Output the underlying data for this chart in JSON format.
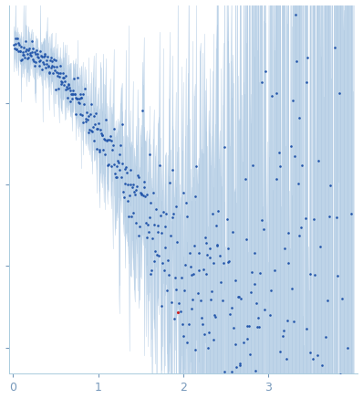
{
  "title": "",
  "xlabel": "",
  "ylabel": "",
  "xlim": [
    -0.05,
    4.05
  ],
  "ylim": [
    -0.08,
    1.05
  ],
  "x_ticks": [
    0,
    1,
    2,
    3
  ],
  "background_color": "#ffffff",
  "dot_color": "#2255aa",
  "outlier_color": "#cc2222",
  "error_fill_color": "#b8d0e8",
  "error_line_color": "#a8c4e0",
  "error_fill_alpha": 0.7,
  "seed": 42
}
